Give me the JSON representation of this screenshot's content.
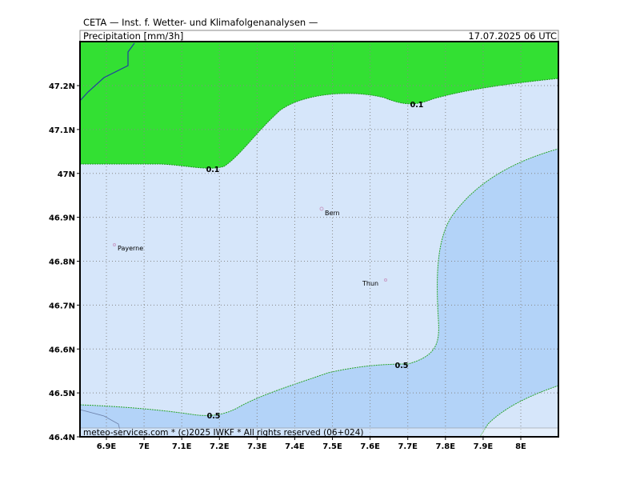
{
  "header": {
    "title": "CETA — Inst. f. Wetter- und Klimafolgenanalysen —",
    "parameter": "Precipitation [mm/3h]",
    "valid_time": "17.07.2025 06 UTC"
  },
  "footer": "meteo-services.com * (c)2025 IWKF * All rights reserved (06+024)",
  "lon_ticks": [
    {
      "value": 6.9,
      "label": "6.9E"
    },
    {
      "value": 7.0,
      "label": "7E"
    },
    {
      "value": 7.1,
      "label": "7.1E"
    },
    {
      "value": 7.2,
      "label": "7.2E"
    },
    {
      "value": 7.3,
      "label": "7.3E"
    },
    {
      "value": 7.4,
      "label": "7.4E"
    },
    {
      "value": 7.5,
      "label": "7.5E"
    },
    {
      "value": 7.6,
      "label": "7.6E"
    },
    {
      "value": 7.7,
      "label": "7.7E"
    },
    {
      "value": 7.8,
      "label": "7.8E"
    },
    {
      "value": 7.9,
      "label": "7.9E"
    },
    {
      "value": 8.0,
      "label": "8E"
    }
  ],
  "lat_ticks": [
    {
      "value": 46.4,
      "label": "46.4N"
    },
    {
      "value": 46.5,
      "label": "46.5N"
    },
    {
      "value": 46.6,
      "label": "46.6N"
    },
    {
      "value": 46.7,
      "label": "46.7N"
    },
    {
      "value": 46.8,
      "label": "46.8N"
    },
    {
      "value": 46.9,
      "label": "46.9N"
    },
    {
      "value": 47.0,
      "label": "47N"
    },
    {
      "value": 47.1,
      "label": "47.1N"
    },
    {
      "value": 47.2,
      "label": "47.2N"
    }
  ],
  "cities": [
    "Bern",
    "Thun",
    "Payerne"
  ],
  "contour_labels": [
    0.1,
    0.1,
    0.5,
    0.5
  ]
}
